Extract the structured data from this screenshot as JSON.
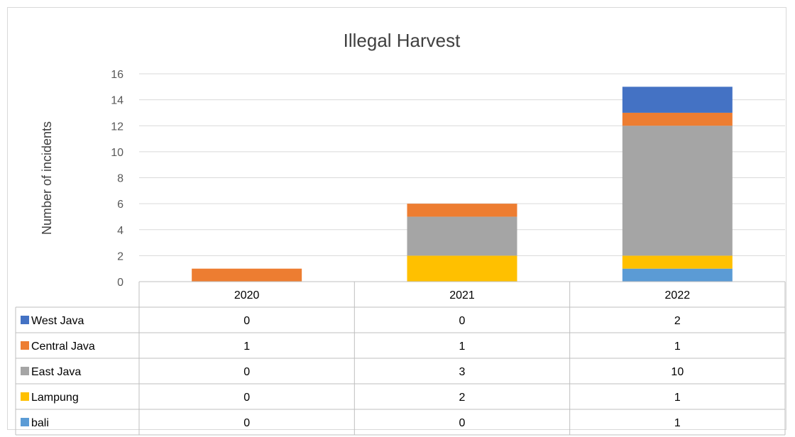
{
  "chart_data": {
    "type": "bar",
    "stacked": true,
    "title": "Illegal Harvest",
    "xlabel": "",
    "ylabel": "Number of incidents",
    "categories": [
      "2020",
      "2021",
      "2022"
    ],
    "ylim": [
      0,
      16
    ],
    "yticks": [
      "0",
      "2",
      "4",
      "6",
      "8",
      "10",
      "12",
      "14",
      "16"
    ],
    "grid": true,
    "legend": "data-table",
    "series": [
      {
        "name": "bali",
        "color": "#5b9bd5",
        "values": [
          0,
          0,
          1
        ]
      },
      {
        "name": "Lampung",
        "color": "#ffc000",
        "values": [
          0,
          2,
          1
        ]
      },
      {
        "name": "East Java",
        "color": "#a5a5a5",
        "values": [
          0,
          3,
          10
        ]
      },
      {
        "name": "Central Java",
        "color": "#ed7d31",
        "values": [
          1,
          1,
          1
        ]
      },
      {
        "name": "West Java",
        "color": "#4472c4",
        "values": [
          0,
          0,
          2
        ]
      }
    ],
    "table_order": [
      "West Java",
      "Central Java",
      "East Java",
      "Lampung",
      "bali"
    ]
  }
}
